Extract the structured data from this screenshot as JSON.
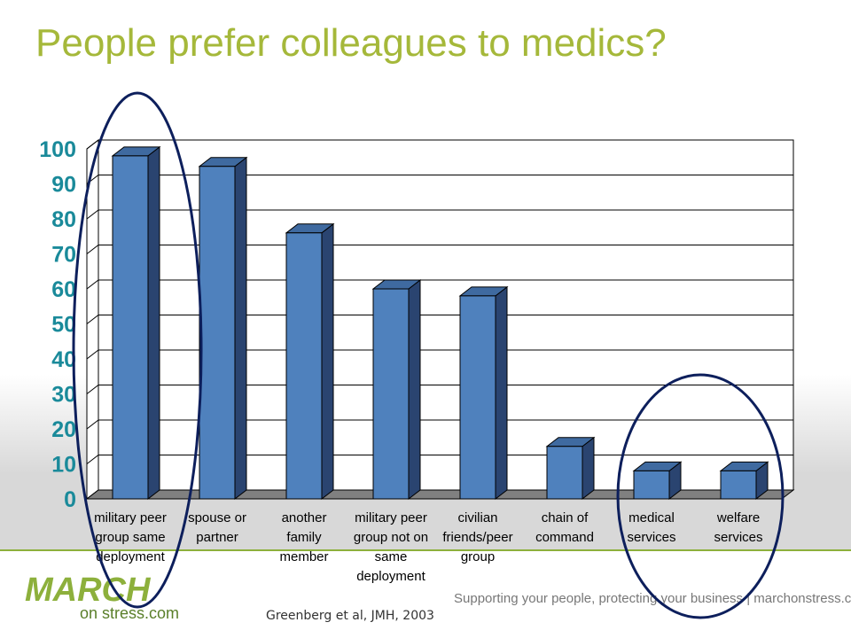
{
  "chart_data": {
    "type": "bar3d",
    "title": "People prefer colleagues to medics?",
    "categories": [
      "military peer\ngroup same\ndeployment",
      "spouse or\npartner",
      "another\nfamily\nmember",
      "military peer\ngroup not on\nsame\ndeployment",
      "civilian\nfriends/peer\ngroup",
      "chain of\ncommand",
      "medical\nservices",
      "welfare\nservices"
    ],
    "values": [
      98,
      95,
      76,
      60,
      58,
      15,
      8,
      8
    ],
    "color": "#4f81bd",
    "ylim": [
      0,
      100
    ],
    "yticks": [
      0,
      10,
      20,
      30,
      40,
      50,
      60,
      70,
      80,
      90,
      100
    ],
    "grid": true
  },
  "source": "Greenberg et al, JMH, 2003",
  "tagline": "Supporting your people, protecting your business | marchonstress.com",
  "logo": {
    "main": "MARCH",
    "sub": "on stress.com"
  }
}
